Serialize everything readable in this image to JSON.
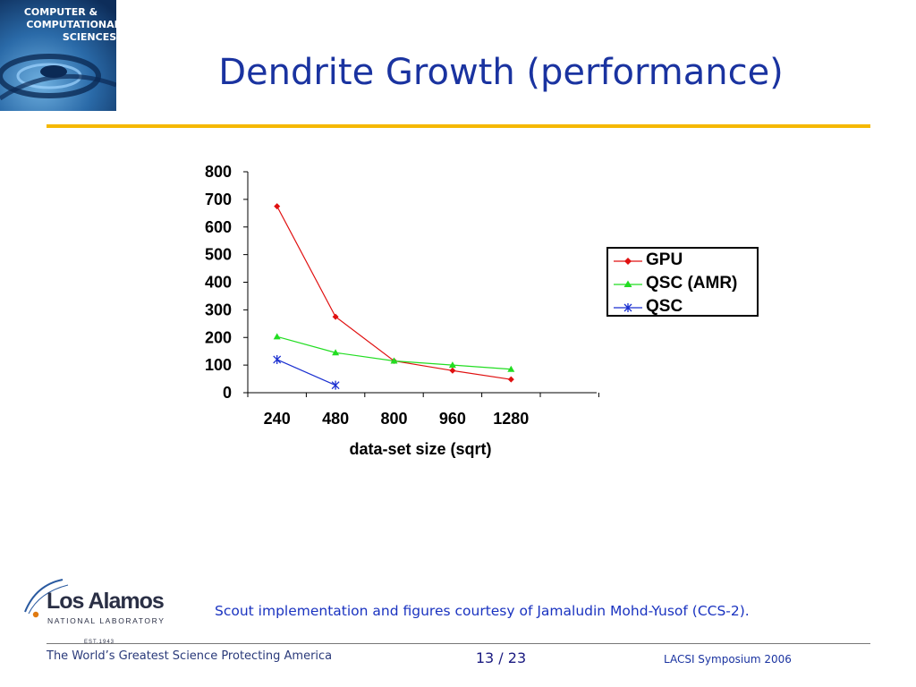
{
  "slide": {
    "title": "Dendrite Growth  (performance)",
    "credit": "Scout implementation and figures courtesy of Jamaludin Mohd-Yusof (CCS-2).",
    "page": "13 / 23",
    "footer_right": "LACSI Symposium 2006"
  },
  "logos": {
    "ccs_text": "COMPUTER & COMPUTATIONAL SCIENCES",
    "lanl_name": "Los Alamos",
    "lanl_sub": "NATIONAL LABORATORY",
    "lanl_est": "EST.1943",
    "tagline": "The World’s Greatest Science Protecting America"
  },
  "colors": {
    "title": "#1a33a0",
    "rule": "#f5b800",
    "gpu": "#e01010",
    "qsc_amr": "#22dd22",
    "qsc": "#1a2fd0"
  },
  "chart_data": {
    "type": "line",
    "categories": [
      "240",
      "480",
      "800",
      "960",
      "1280"
    ],
    "series": [
      {
        "name": "GPU",
        "values": [
          675,
          275,
          115,
          80,
          48
        ],
        "color": "#e01010",
        "marker": "diamond"
      },
      {
        "name": "QSC (AMR)",
        "values": [
          203,
          145,
          115,
          100,
          85
        ],
        "color": "#22dd22",
        "marker": "triangle"
      },
      {
        "name": "QSC",
        "values": [
          120,
          27,
          null,
          null,
          null
        ],
        "color": "#1a2fd0",
        "marker": "star"
      }
    ],
    "title": "",
    "xlabel": "data-set size (sqrt)",
    "ylabel": "",
    "ylim": [
      0,
      800
    ],
    "yticks": [
      "0",
      "100",
      "200",
      "300",
      "400",
      "500",
      "600",
      "700",
      "800"
    ],
    "grid": false,
    "legend": "right"
  }
}
